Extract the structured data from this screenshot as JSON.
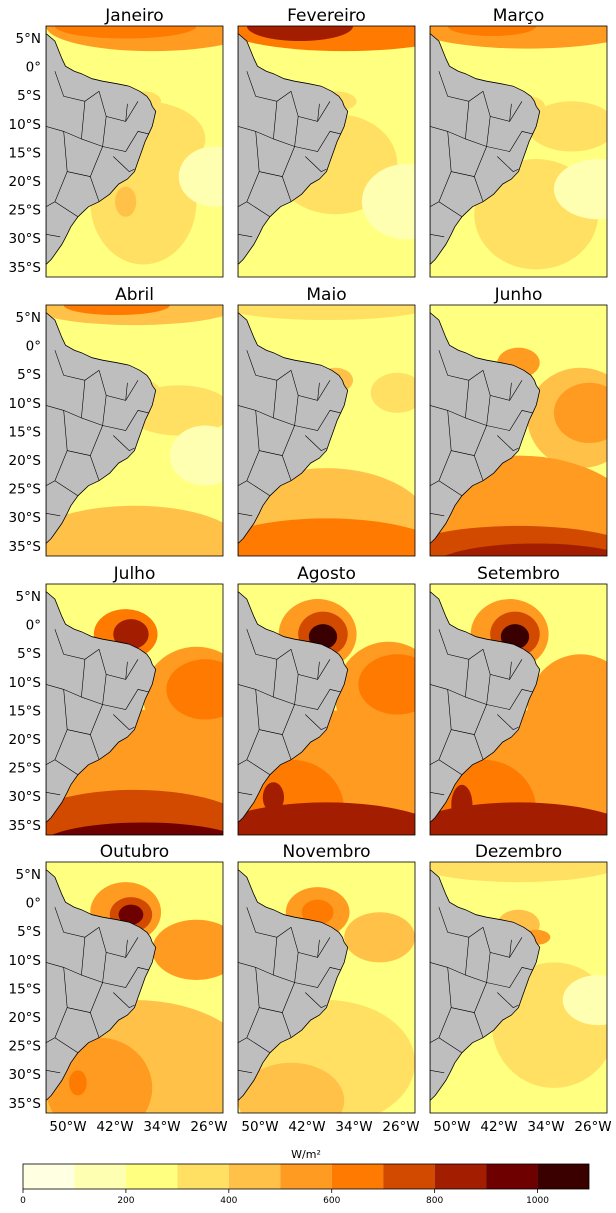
{
  "figure": {
    "panels": [
      {
        "id": "janeiro",
        "title": "Janeiro"
      },
      {
        "id": "fevereiro",
        "title": "Fevereiro"
      },
      {
        "id": "marco",
        "title": "Março"
      },
      {
        "id": "abril",
        "title": "Abril"
      },
      {
        "id": "maio",
        "title": "Maio"
      },
      {
        "id": "junho",
        "title": "Junho"
      },
      {
        "id": "julho",
        "title": "Julho"
      },
      {
        "id": "agosto",
        "title": "Agosto"
      },
      {
        "id": "setembro",
        "title": "Setembro"
      },
      {
        "id": "outubro",
        "title": "Outubro"
      },
      {
        "id": "novembro",
        "title": "Novembro"
      },
      {
        "id": "dezembro",
        "title": "Dezembro"
      }
    ],
    "lat_labels": [
      "5°N",
      "0°",
      "5°S",
      "10°S",
      "15°S",
      "20°S",
      "25°S",
      "30°S",
      "35°S"
    ],
    "lon_labels": [
      "50°W",
      "42°W",
      "34°W",
      "26°W"
    ],
    "land_color": "#bebebe",
    "coast_color": "#000000"
  },
  "colorbar": {
    "unit": "W/m²",
    "levels": [
      0,
      100,
      200,
      300,
      400,
      500,
      600,
      700,
      800,
      900,
      1000,
      1100
    ],
    "tick_labels": [
      "0",
      "200",
      "400",
      "600",
      "800",
      "1000"
    ],
    "tick_values": [
      0,
      200,
      400,
      600,
      800,
      1000
    ],
    "colors": [
      "#ffffe1",
      "#ffffb2",
      "#ffff80",
      "#ffe063",
      "#ffc148",
      "#ff9b21",
      "#ff7a00",
      "#d24a00",
      "#a31e00",
      "#6e0000",
      "#3a0000",
      "#150000"
    ]
  }
}
